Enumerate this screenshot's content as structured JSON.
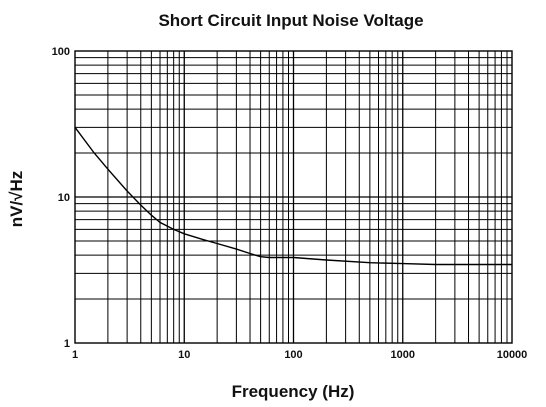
{
  "chart_data": {
    "type": "line",
    "title": "Short Circuit Input Noise Voltage",
    "xlabel": "Frequency (Hz)",
    "ylabel": "nV/√Hz",
    "x_scale": "log",
    "y_scale": "log",
    "xlim": [
      1,
      10000
    ],
    "ylim": [
      1,
      100
    ],
    "x_ticks": [
      1,
      10,
      100,
      1000,
      10000
    ],
    "x_tick_labels": [
      "1",
      "10",
      "100",
      "1000",
      "10000"
    ],
    "y_ticks": [
      1,
      10,
      100
    ],
    "y_tick_labels": [
      "1",
      "10",
      "100"
    ],
    "grid": true,
    "series": [
      {
        "x": [
          1,
          1.5,
          2,
          3,
          4,
          5,
          6,
          8,
          10,
          15,
          20,
          30,
          40,
          50,
          60,
          80,
          100,
          200,
          500,
          1000,
          2000,
          5000,
          10000
        ],
        "y": [
          30,
          20,
          15.5,
          11,
          8.8,
          7.5,
          6.7,
          6.0,
          5.6,
          5.1,
          4.8,
          4.4,
          4.1,
          3.9,
          3.85,
          3.85,
          3.85,
          3.7,
          3.55,
          3.5,
          3.45,
          3.45,
          3.45
        ],
        "color": "#000000"
      }
    ]
  }
}
